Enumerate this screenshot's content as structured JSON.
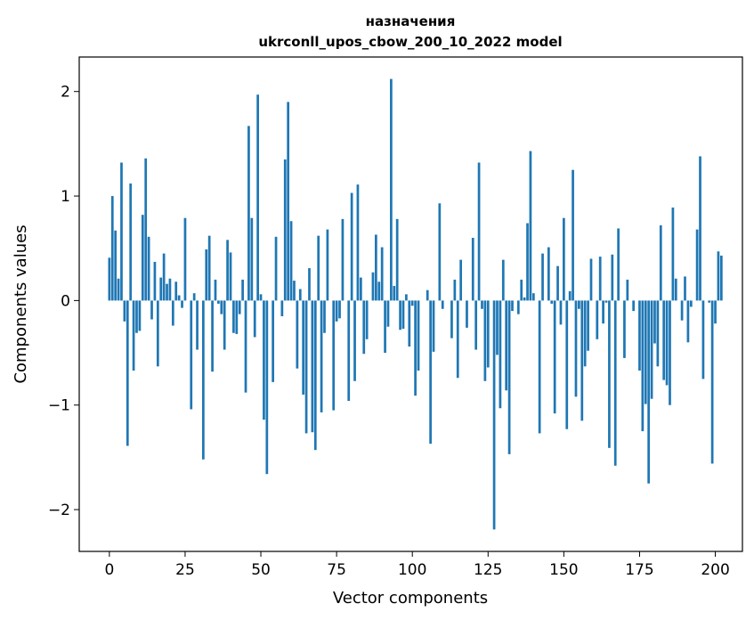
{
  "chart_data": {
    "type": "bar",
    "title_line1": "назначения",
    "title_line2": "ukrconll_upos_cbow_200_10_2022 model",
    "xlabel": "Vector components",
    "ylabel": "Components values",
    "xlim": [
      -9.95,
      208.95
    ],
    "ylim": [
      -2.4,
      2.33
    ],
    "xticks": [
      0,
      25,
      50,
      75,
      100,
      125,
      150,
      175,
      200
    ],
    "xtick_labels": [
      "0",
      "25",
      "50",
      "75",
      "100",
      "125",
      "150",
      "175",
      "200"
    ],
    "yticks": [
      -2,
      -1,
      0,
      1,
      2
    ],
    "ytick_labels": [
      "−2",
      "−1",
      "0",
      "1",
      "2"
    ],
    "grid": false,
    "bar_color": "#1f77b4",
    "values": [
      0.41,
      1.0,
      0.67,
      0.21,
      1.32,
      -0.2,
      -1.39,
      1.12,
      -0.67,
      -0.31,
      -0.29,
      0.82,
      1.36,
      0.61,
      -0.18,
      0.37,
      -0.63,
      0.22,
      0.45,
      0.16,
      0.21,
      -0.24,
      0.18,
      0.05,
      -0.07,
      0.79,
      0.0,
      -1.04,
      0.07,
      -0.47,
      0.0,
      -1.52,
      0.49,
      0.62,
      -0.68,
      0.2,
      -0.03,
      -0.13,
      -0.47,
      0.58,
      0.46,
      -0.31,
      -0.32,
      -0.13,
      0.2,
      -0.88,
      1.67,
      0.79,
      -0.35,
      1.97,
      0.06,
      -1.14,
      -1.66,
      0.0,
      -0.78,
      0.61,
      0.0,
      -0.15,
      1.35,
      1.9,
      0.76,
      0.19,
      -0.65,
      0.11,
      -0.9,
      -1.27,
      0.31,
      -1.26,
      -1.43,
      0.62,
      -1.07,
      -0.31,
      0.68,
      0.0,
      -1.05,
      -0.2,
      -0.17,
      0.78,
      0.0,
      -0.96,
      1.03,
      -0.77,
      1.11,
      0.22,
      -0.51,
      -0.37,
      0.0,
      0.27,
      0.63,
      0.18,
      0.51,
      -0.5,
      -0.25,
      2.12,
      0.14,
      0.78,
      -0.28,
      -0.27,
      0.06,
      -0.44,
      -0.05,
      -0.91,
      -0.67,
      0.0,
      0.0,
      0.1,
      -1.37,
      -0.49,
      0.0,
      0.93,
      -0.08,
      0.0,
      0.0,
      -0.36,
      0.2,
      -0.74,
      0.39,
      0.0,
      -0.26,
      0.0,
      0.6,
      -0.47,
      1.32,
      -0.08,
      -0.77,
      -0.64,
      0.0,
      -2.19,
      -0.52,
      -1.03,
      0.39,
      -0.86,
      -1.47,
      -0.1,
      0.0,
      -0.13,
      0.2,
      0.03,
      0.74,
      1.43,
      0.07,
      0.0,
      -1.27,
      0.45,
      0.0,
      0.51,
      -0.03,
      -1.08,
      0.33,
      -0.23,
      0.79,
      -1.23,
      0.09,
      1.25,
      -0.92,
      -0.08,
      -1.15,
      -0.63,
      -0.48,
      0.4,
      0.0,
      -0.37,
      0.42,
      -0.22,
      -0.02,
      -1.41,
      0.44,
      -1.58,
      0.69,
      0.0,
      -0.55,
      0.2,
      0.0,
      -0.1,
      0.0,
      -0.67,
      -1.25,
      -0.99,
      -1.75,
      -0.94,
      -0.41,
      -0.63,
      0.72,
      -0.76,
      -0.81,
      -1.0,
      0.89,
      0.21,
      0.0,
      -0.19,
      0.23,
      -0.4,
      -0.06,
      0.0,
      0.68,
      1.38,
      -0.75,
      0.0,
      -0.02,
      -1.56,
      -0.22,
      0.47,
      0.43
    ]
  }
}
